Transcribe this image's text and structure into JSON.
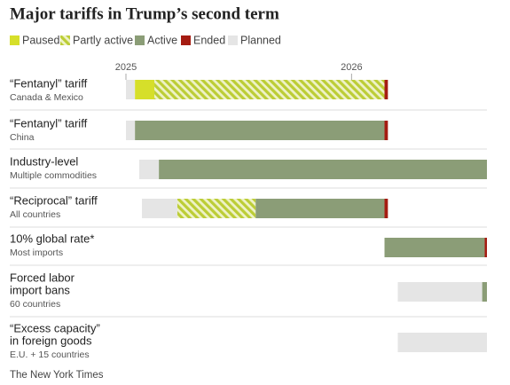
{
  "chart_data": {
    "type": "timeline",
    "title": "Major tariffs in Trump’s second term",
    "statuses": [
      {
        "name": "Paused",
        "color": "#d6df2a"
      },
      {
        "name": "Partly active",
        "color": "#bccd36",
        "hatched": true
      },
      {
        "name": "Active",
        "color": "#8b9d77"
      },
      {
        "name": "Ended",
        "color": "#a51c12"
      },
      {
        "name": "Planned",
        "color": "#e5e5e5"
      }
    ],
    "xlim": [
      2025,
      2026.6
    ],
    "xticks": [
      2025,
      2026
    ],
    "rows": [
      {
        "label": [
          "“Fentanyl” tariff"
        ],
        "sublabel": "Canada & Mexico",
        "segments": [
          {
            "status": 4,
            "start": 2025.0,
            "end": 2025.04
          },
          {
            "status": 0,
            "start": 2025.04,
            "end": 2025.126
          },
          {
            "status": 1,
            "start": 2025.126,
            "end": 2026.146
          },
          {
            "status": 3,
            "start": 2026.146,
            "end": 2026.161
          }
        ]
      },
      {
        "label": [
          "“Fentanyl” tariff"
        ],
        "sublabel": "China",
        "segments": [
          {
            "status": 4,
            "start": 2025.0,
            "end": 2025.04
          },
          {
            "status": 2,
            "start": 2025.04,
            "end": 2026.146
          },
          {
            "status": 3,
            "start": 2026.146,
            "end": 2026.161
          }
        ]
      },
      {
        "label": [
          "Industry-level"
        ],
        "sublabel": "Multiple commodities",
        "segments": [
          {
            "status": 4,
            "start": 2025.059,
            "end": 2025.146
          },
          {
            "status": 2,
            "start": 2025.146,
            "end": 2026.6
          }
        ]
      },
      {
        "label": [
          "“Reciprocal” tariff"
        ],
        "sublabel": "All countries",
        "segments": [
          {
            "status": 4,
            "start": 2025.071,
            "end": 2025.228
          },
          {
            "status": 1,
            "start": 2025.228,
            "end": 2025.575
          },
          {
            "status": 2,
            "start": 2025.575,
            "end": 2026.146
          },
          {
            "status": 3,
            "start": 2026.146,
            "end": 2026.161
          }
        ]
      },
      {
        "label": [
          "10% global rate*"
        ],
        "sublabel": "Most imports",
        "segments": [
          {
            "status": 2,
            "start": 2026.146,
            "end": 2026.59
          },
          {
            "status": 3,
            "start": 2026.59,
            "end": 2026.6
          }
        ]
      },
      {
        "label": [
          "Forced labor",
          "import bans"
        ],
        "sublabel": "60 countries",
        "segments": [
          {
            "status": 4,
            "start": 2026.205,
            "end": 2026.579
          },
          {
            "status": 2,
            "start": 2026.579,
            "end": 2026.6
          }
        ]
      },
      {
        "label": [
          "“Excess capacity”",
          "in foreign goods"
        ],
        "sublabel": "E.U. + 15 countries",
        "segments": [
          {
            "status": 4,
            "start": 2026.205,
            "end": 2026.6
          }
        ]
      }
    ],
    "source": "The New York Times"
  }
}
